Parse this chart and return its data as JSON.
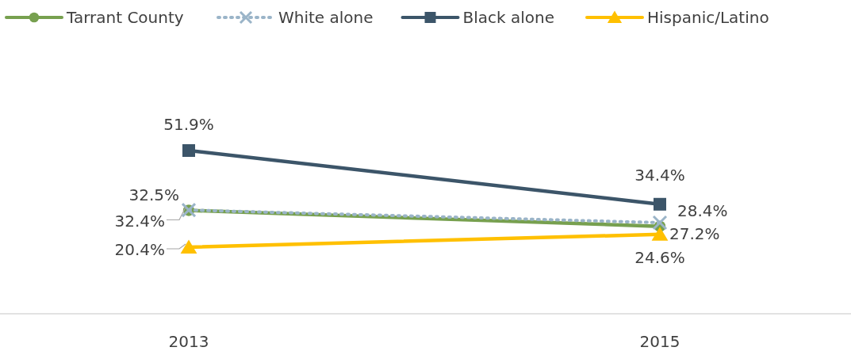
{
  "chart_data": {
    "type": "line",
    "categories": [
      "2013",
      "2015"
    ],
    "series": [
      {
        "name": "Tarrant County",
        "color": "#77a04f",
        "values": [
          32.4,
          27.2
        ],
        "value_labels": [
          "32.4%",
          "27.2%"
        ],
        "marker": "circle",
        "line_style": "solid"
      },
      {
        "name": "White alone",
        "color": "#9ab4c8",
        "values": [
          32.5,
          28.4
        ],
        "value_labels": [
          "32.5%",
          "28.4%"
        ],
        "marker": "cross",
        "line_style": "dotted"
      },
      {
        "name": "Black alone",
        "color": "#3c5569",
        "values": [
          51.9,
          34.4
        ],
        "value_labels": [
          "51.9%",
          "34.4%"
        ],
        "marker": "square",
        "line_style": "solid"
      },
      {
        "name": "Hispanic/Latino",
        "color": "#ffc000",
        "values": [
          20.4,
          24.6
        ],
        "value_labels": [
          "20.4%",
          "24.6%"
        ],
        "marker": "triangle",
        "line_style": "solid"
      }
    ],
    "legend": "top left",
    "tick_labels": "x"
  }
}
